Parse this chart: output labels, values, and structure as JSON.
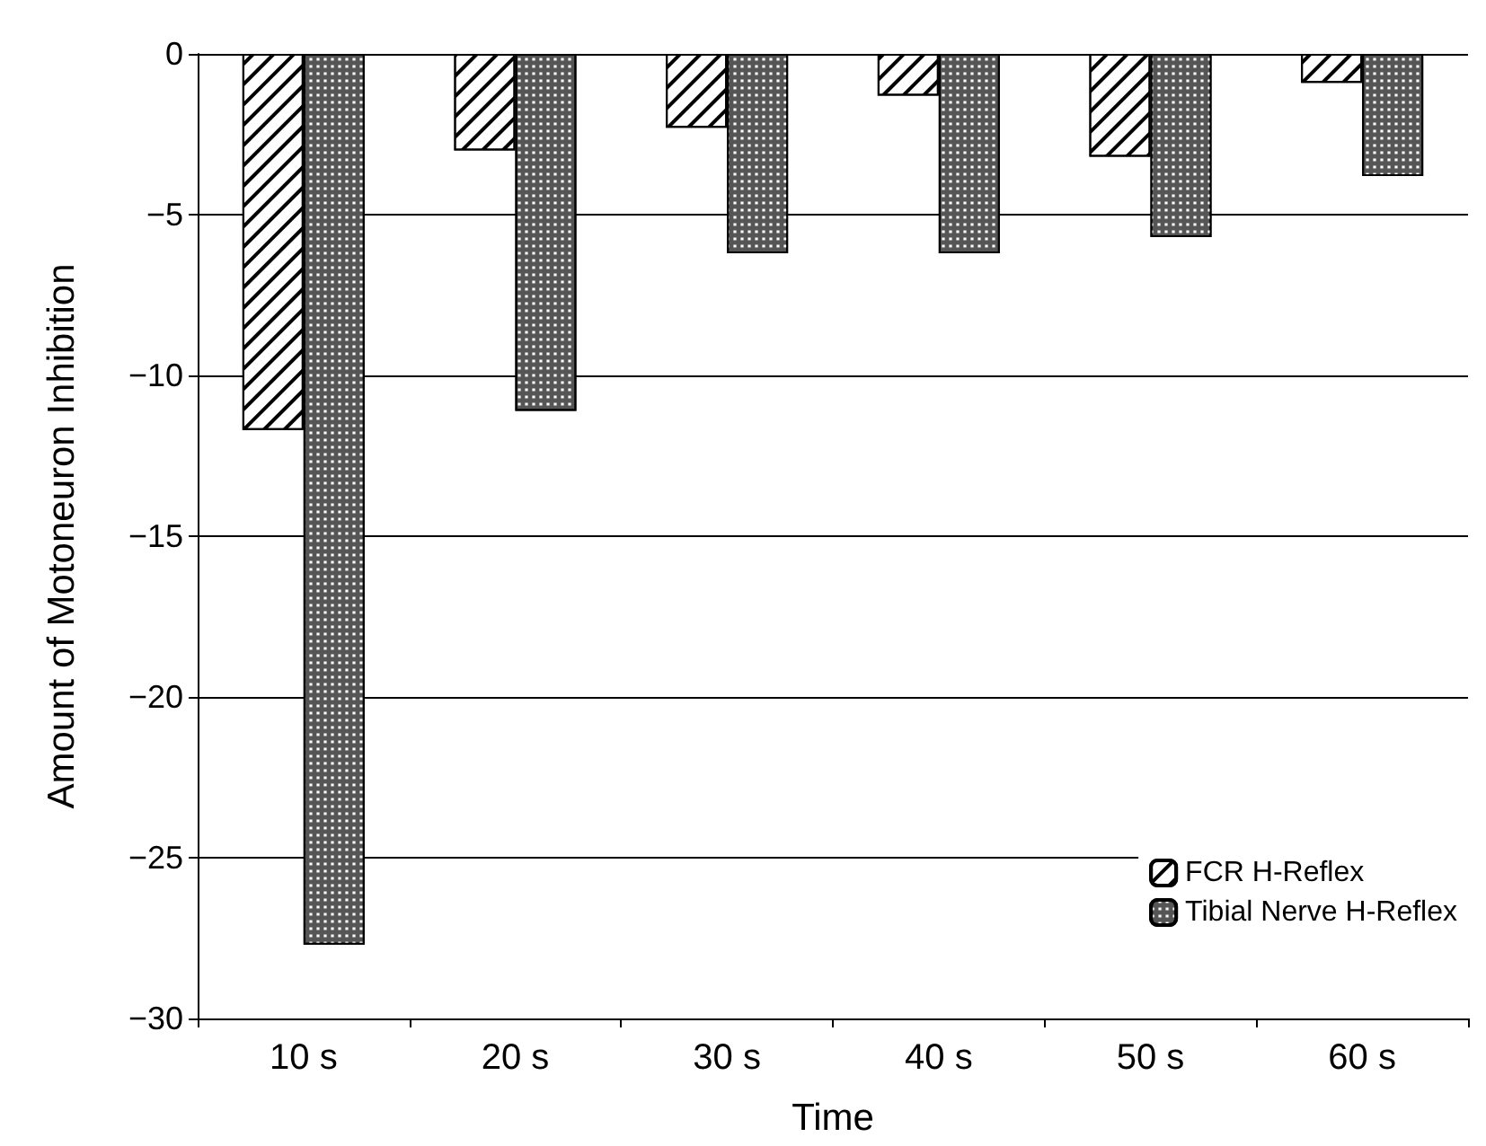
{
  "chart_data": {
    "type": "bar",
    "xlabel": "Time",
    "ylabel": "Amount of Motoneuron Inhibition",
    "categories": [
      "10 s",
      "20 s",
      "30 s",
      "40 s",
      "50 s",
      "60 s"
    ],
    "series": [
      {
        "name": "FCR H-Reflex",
        "color": "#ffffff",
        "values": [
          -11.7,
          -3.0,
          -2.3,
          -1.3,
          -3.2,
          -0.9
        ]
      },
      {
        "name": "Tibial Nerve H-Reflex",
        "color": "#555555",
        "values": [
          -27.7,
          -11.1,
          -6.2,
          -6.2,
          -5.7,
          -3.8
        ]
      }
    ],
    "ylim": [
      -30,
      0
    ],
    "yticks": [
      {
        "value": -30,
        "label": "−30"
      },
      {
        "value": -25,
        "label": "−25"
      },
      {
        "value": -20,
        "label": "−20"
      },
      {
        "value": -15,
        "label": "−15"
      },
      {
        "value": -10,
        "label": "−10"
      },
      {
        "value": -5,
        "label": "−5"
      },
      0
    ],
    "grid": "y",
    "legend": "bottom right"
  }
}
